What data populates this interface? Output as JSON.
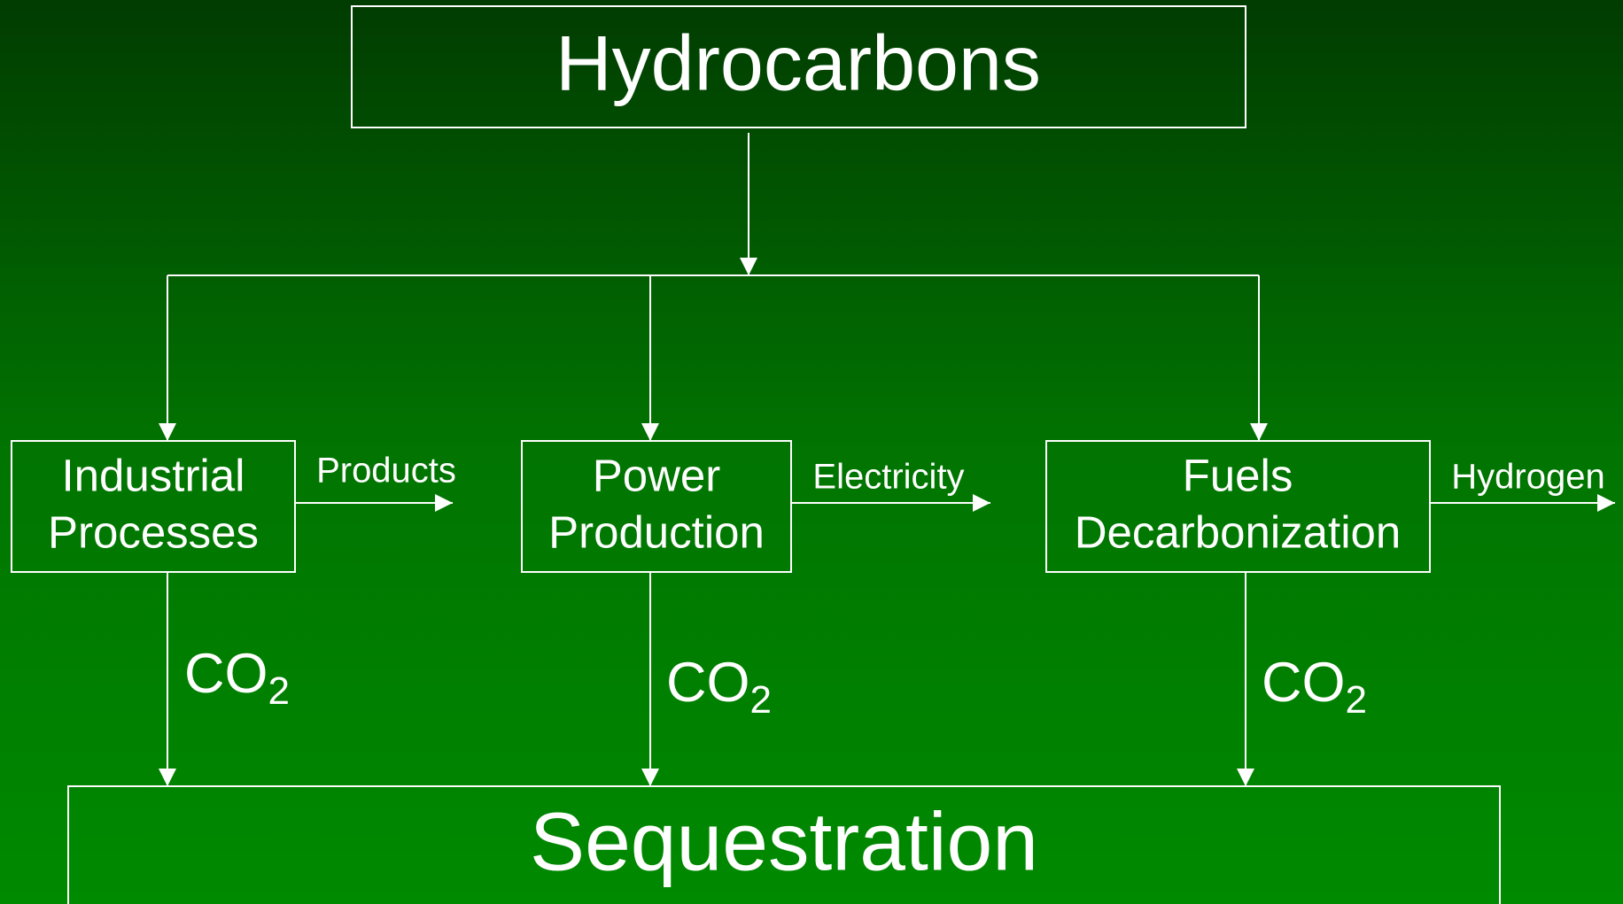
{
  "nodes": [
    {
      "label": [
        "Hydrocarbons"
      ]
    },
    {
      "label": [
        "Industrial",
        "Processes"
      ]
    },
    {
      "label": [
        "Power",
        "Production"
      ]
    },
    {
      "label": [
        "Fuels",
        "Decarbonization"
      ]
    },
    {
      "label": [
        "Sequestration"
      ]
    }
  ],
  "outputs": [
    "Products",
    "Electricity",
    "Hydrogen"
  ],
  "flows": [
    {
      "main": "CO",
      "sub": "2"
    },
    {
      "main": "CO",
      "sub": "2"
    },
    {
      "main": "CO",
      "sub": "2"
    }
  ]
}
